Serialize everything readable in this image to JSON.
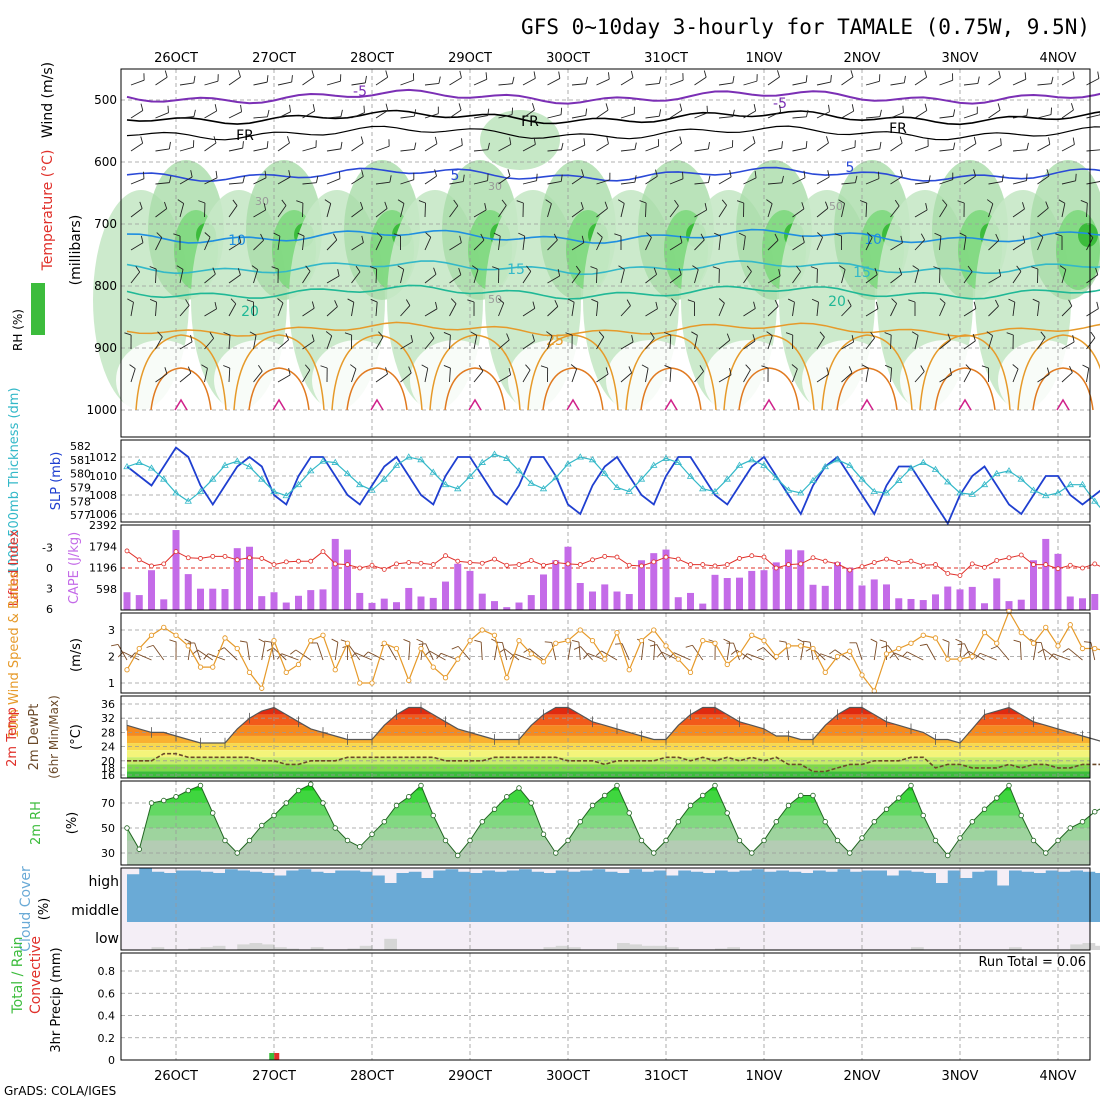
{
  "title": "GFS 0~10day 3-hourly for TAMALE (0.75W, 9.5N)",
  "footer": "GrADS: COLA/IGES",
  "dates": [
    "26OCT",
    "27OCT",
    "28OCT",
    "29OCT",
    "30OCT",
    "31OCT",
    "1NOV",
    "2NOV",
    "3NOV",
    "4NOV"
  ],
  "colors": {
    "purple": "#7b2fb5",
    "blue": "#2a49d6",
    "cyan": "#33b8c8",
    "orange": "#e69a2a",
    "dark_orange": "#e07a20",
    "green": "#3cbc3c",
    "rh_mid": "#7ed87e",
    "rh_light": "#c6e8c6",
    "cloud": "#6aaad6",
    "cloud_high_bg": "#f4eef6",
    "red": "#e0302a"
  },
  "panels": {
    "upper": {
      "ylabel_wind": "Wind (m/s)",
      "ylabel_temp": "Temperature (°C)",
      "ylabel_rh": "RH (%)",
      "ylabel_mb": "(millibars)",
      "yticks": [
        "500",
        "600",
        "700",
        "800",
        "900",
        "1000"
      ],
      "contour_labels": [
        "-5",
        "-5",
        "FR",
        "FR",
        "FR",
        "5",
        "5",
        "10",
        "10",
        "15",
        "15",
        "20",
        "20",
        "25",
        "30",
        "30",
        "50",
        "50"
      ]
    },
    "thickness": {
      "ylabel_left": "1000-500mb Thickness (dm)",
      "ylabel_right": "SLP (mb)",
      "left_ticks": [
        "582",
        "581",
        "580",
        "579",
        "578",
        "577"
      ],
      "right_ticks": [
        "1012",
        "1010",
        "1008",
        "1006"
      ]
    },
    "cape": {
      "ylabel_left": "Lifted Index",
      "ylabel_right": "CAPE (J/kg)",
      "left_ticks": [
        "-3",
        "0",
        "3",
        "6"
      ],
      "right_ticks": [
        "2392",
        "1794",
        "1196",
        "598"
      ]
    },
    "wind": {
      "ylabel": "10m Wind Speed & Barbs",
      "unit": "(m/s)",
      "yticks": [
        "3",
        "2",
        "1"
      ]
    },
    "temp": {
      "ylabel1": "2m Temp",
      "ylabel2": "2m DewPt",
      "ylabel3": "(6hr Min/Max)",
      "unit": "(°C)",
      "yticks": [
        "36",
        "32",
        "28",
        "24",
        "20",
        "18",
        "16"
      ]
    },
    "rh": {
      "ylabel": "2m RH",
      "unit": "(%)",
      "yticks": [
        "70",
        "50",
        "30"
      ]
    },
    "cloud": {
      "ylabel": "Cloud Cover",
      "unit": "(%)",
      "levels": [
        "high",
        "middle",
        "low"
      ]
    },
    "precip": {
      "ylabel_left1": "Total / Rain",
      "ylabel_left2": "Convective",
      "ylabel": "3hr Precip (mm)",
      "yticks": [
        "0.8",
        "0.6",
        "0.4",
        "0.2",
        "0"
      ],
      "run_total": "Run Total = 0.06"
    }
  },
  "chart_data": {
    "type": "line",
    "title": "GFS 0~10day 3-hourly for TAMALE (0.75W, 9.5N)",
    "x_dates": [
      "26OCT",
      "27OCT",
      "28OCT",
      "29OCT",
      "30OCT",
      "31OCT",
      "1NOV",
      "2NOV",
      "3NOV",
      "4NOV"
    ],
    "step_hours": 3,
    "n_steps": 81,
    "slp_mb": [
      1011,
      1010,
      1009,
      1011,
      1013,
      1012,
      1009,
      1007,
      1009,
      1011,
      1012,
      1011,
      1008,
      1007,
      1010,
      1012,
      1012,
      1010,
      1008,
      1007,
      1009,
      1011,
      1012,
      1010,
      1008,
      1007,
      1010,
      1012,
      1012,
      1010,
      1008,
      1007,
      1009,
      1012,
      1012,
      1010,
      1007,
      1006,
      1009,
      1011,
      1012,
      1010,
      1008,
      1007,
      1010,
      1012,
      1012,
      1010,
      1008,
      1007,
      1009,
      1011,
      1012,
      1010,
      1008,
      1006,
      1009,
      1011,
      1012,
      1010,
      1008,
      1006,
      1009,
      1011,
      1011,
      1009,
      1007,
      1005,
      1008,
      1010,
      1011,
      1009,
      1007,
      1006,
      1008,
      1010,
      1010,
      1008,
      1007,
      1008,
      1009
    ],
    "thickness_dm": [
      580.5,
      580.8,
      580.4,
      579.6,
      578.6,
      578.0,
      578.7,
      579.6,
      580.6,
      580.9,
      580.5,
      579.6,
      578.7,
      578.4,
      579.2,
      580.2,
      580.9,
      580.8,
      580.0,
      579.2,
      578.8,
      579.6,
      580.6,
      581.2,
      581.0,
      580.1,
      579.2,
      578.9,
      579.8,
      580.8,
      581.4,
      581.1,
      580.2,
      579.3,
      578.9,
      579.7,
      580.7,
      581.2,
      581.0,
      580.0,
      579.0,
      578.7,
      579.6,
      580.6,
      581.1,
      580.8,
      579.8,
      578.9,
      578.7,
      579.6,
      580.6,
      581.0,
      580.6,
      579.7,
      578.8,
      578.6,
      579.5,
      580.5,
      581.0,
      580.6,
      579.6,
      578.7,
      578.6,
      579.5,
      580.4,
      580.8,
      580.3,
      579.4,
      578.6,
      578.5,
      579.2,
      580.0,
      580.2,
      579.6,
      578.8,
      578.4,
      578.6,
      579.2,
      579.2,
      578.0,
      577.0
    ],
    "cape_jkg": [
      500,
      420,
      1120,
      300,
      2250,
      1010,
      600,
      600,
      590,
      1740,
      1780,
      390,
      500,
      210,
      400,
      560,
      580,
      2000,
      1700,
      480,
      200,
      320,
      220,
      620,
      380,
      340,
      800,
      1300,
      1100,
      460,
      250,
      80,
      210,
      420,
      1000,
      1400,
      1780,
      760,
      520,
      720,
      520,
      450,
      1400,
      1600,
      1700,
      360,
      480,
      180,
      990,
      900,
      910,
      1100,
      1120,
      1340,
      1700,
      1680,
      710,
      680,
      1350,
      1190,
      690,
      860,
      720,
      330,
      310,
      280,
      440,
      660,
      580,
      650,
      190,
      890,
      250,
      290,
      1400,
      2000,
      1580,
      380,
      330,
      450,
      70
    ],
    "lifted_index": [
      -2.5,
      -1.2,
      -0.3,
      -0.6,
      -2.4,
      -1.5,
      -1.4,
      -1.7,
      -1.7,
      -1.2,
      -1.5,
      -1.4,
      -0.5,
      -0.9,
      -1.0,
      -1.0,
      -2.4,
      -0.6,
      -0.5,
      0.0,
      -0.4,
      0.2,
      -0.6,
      -0.8,
      -0.7,
      -0.5,
      -1.8,
      -1.0,
      -0.8,
      -0.7,
      -1.3,
      -0.4,
      -0.5,
      -1.1,
      -0.4,
      -0.8,
      -0.6,
      -0.5,
      -1.2,
      -1.7,
      -1.6,
      -0.4,
      -0.3,
      -0.9,
      -1.6,
      -1.3,
      -0.5,
      -0.5,
      -0.3,
      -0.5,
      -1.4,
      -1.8,
      -1.6,
      0.0,
      -0.5,
      -0.6,
      -1.5,
      -1.0,
      -0.6,
      0.3,
      -0.2,
      -0.8,
      -1.3,
      -0.8,
      -1.0,
      -0.4,
      -0.5,
      0.8,
      1.1,
      -0.6,
      -0.1,
      -1.1,
      -1.5,
      -1.9,
      -0.5,
      -0.5,
      0.1,
      -0.4,
      0.0,
      -0.6,
      0.2
    ],
    "wind10m_ms": [
      1.5,
      2.3,
      2.8,
      3.1,
      2.8,
      2.4,
      1.6,
      1.6,
      2.7,
      2.3,
      1.4,
      0.8,
      2.6,
      1.4,
      1.7,
      2.6,
      2.8,
      1.5,
      2.5,
      1.0,
      1.0,
      2.5,
      2.3,
      1.1,
      2.3,
      1.6,
      1.2,
      1.9,
      2.6,
      3.0,
      2.8,
      1.2,
      2.6,
      2.1,
      1.8,
      2.5,
      2.6,
      3.0,
      2.6,
      1.9,
      2.9,
      1.5,
      2.6,
      3.0,
      2.4,
      1.9,
      1.4,
      2.6,
      2.5,
      1.7,
      2.1,
      2.8,
      2.6,
      2.0,
      2.4,
      2.4,
      2.3,
      1.4,
      2.0,
      2.2,
      1.3,
      0.7,
      2.1,
      2.3,
      2.5,
      2.8,
      2.7,
      1.9,
      1.9,
      2.0,
      2.9,
      2.5,
      3.7,
      2.9,
      2.5,
      3.1,
      2.4,
      3.2,
      2.3,
      2.3,
      2.2
    ],
    "temp2m_c": [
      30,
      29,
      28,
      28,
      27,
      26,
      25,
      25,
      25,
      29,
      32,
      34,
      35,
      33,
      31,
      29,
      28,
      27,
      26,
      26,
      26,
      30,
      33,
      35,
      35,
      33,
      31,
      29,
      28,
      27,
      26,
      26,
      26,
      30,
      33,
      35,
      35,
      33,
      31,
      30,
      29,
      28,
      27,
      26,
      26,
      30,
      33,
      35,
      35,
      33,
      31,
      30,
      29,
      27,
      27,
      26,
      26,
      30,
      33,
      35,
      35,
      33,
      31,
      30,
      29,
      28,
      26,
      26,
      25,
      29,
      33,
      34,
      35,
      33,
      31,
      30,
      29,
      28,
      27,
      26,
      25
    ],
    "dewpt2m_c": [
      20,
      20,
      20,
      22,
      22,
      21,
      21,
      21,
      21,
      21,
      21,
      20,
      20,
      19,
      19,
      20,
      20,
      20,
      21,
      21,
      21,
      21,
      21,
      21,
      21,
      21,
      20,
      20,
      20,
      20,
      21,
      21,
      21,
      21,
      21,
      21,
      20,
      20,
      20,
      19,
      20,
      20,
      20,
      20,
      21,
      21,
      20,
      21,
      20,
      21,
      20,
      21,
      20,
      21,
      19,
      19,
      17,
      17,
      18,
      19,
      19,
      20,
      20,
      20,
      21,
      21,
      18,
      19,
      19,
      18,
      18,
      18,
      19,
      18,
      19,
      19,
      18,
      18,
      19,
      19,
      19
    ],
    "rh2m_pct": [
      50,
      33,
      70,
      72,
      75,
      80,
      84,
      62,
      40,
      30,
      40,
      52,
      60,
      70,
      80,
      85,
      70,
      50,
      40,
      35,
      45,
      55,
      68,
      75,
      84,
      60,
      40,
      28,
      40,
      55,
      65,
      75,
      82,
      70,
      45,
      30,
      40,
      55,
      68,
      76,
      84,
      62,
      40,
      30,
      40,
      55,
      68,
      76,
      84,
      62,
      40,
      30,
      40,
      55,
      68,
      76,
      76,
      55,
      40,
      30,
      42,
      55,
      65,
      74,
      84,
      60,
      40,
      28,
      42,
      55,
      65,
      74,
      84,
      60,
      40,
      30,
      40,
      50,
      55,
      63,
      68
    ],
    "cloud_high_pct": [
      75,
      100,
      85,
      80,
      90,
      90,
      85,
      80,
      95,
      90,
      85,
      80,
      70,
      90,
      95,
      85,
      80,
      90,
      90,
      85,
      70,
      40,
      80,
      85,
      60,
      90,
      95,
      85,
      80,
      90,
      85,
      90,
      95,
      85,
      80,
      90,
      85,
      90,
      95,
      85,
      80,
      95,
      85,
      90,
      70,
      90,
      85,
      80,
      90,
      85,
      90,
      95,
      85,
      90,
      85,
      80,
      90,
      85,
      95,
      85,
      90,
      90,
      70,
      90,
      85,
      80,
      40,
      90,
      60,
      85,
      90,
      30,
      90,
      85,
      80,
      90,
      85,
      90,
      85,
      80,
      90
    ],
    "cloud_mid_pct": [
      100,
      100,
      100,
      100,
      100,
      100,
      100,
      100,
      100,
      100,
      100,
      100,
      100,
      100,
      100,
      100,
      100,
      100,
      100,
      100,
      100,
      100,
      100,
      100,
      100,
      100,
      100,
      100,
      100,
      100,
      100,
      100,
      100,
      100,
      100,
      100,
      100,
      100,
      100,
      100,
      100,
      100,
      100,
      100,
      100,
      100,
      100,
      100,
      100,
      100,
      100,
      100,
      100,
      100,
      100,
      100,
      100,
      100,
      100,
      100,
      100,
      100,
      100,
      100,
      100,
      100,
      100,
      100,
      100,
      100,
      100,
      100,
      100,
      100,
      100,
      100,
      100,
      100,
      100,
      100,
      100
    ],
    "cloud_low_pct": [
      0,
      0,
      10,
      0,
      0,
      5,
      10,
      15,
      0,
      20,
      25,
      20,
      10,
      5,
      0,
      10,
      0,
      0,
      5,
      15,
      0,
      40,
      0,
      0,
      0,
      0,
      0,
      0,
      0,
      0,
      0,
      0,
      0,
      0,
      10,
      15,
      10,
      0,
      0,
      0,
      25,
      20,
      15,
      15,
      10,
      0,
      0,
      0,
      5,
      10,
      0,
      0,
      0,
      0,
      0,
      0,
      0,
      0,
      0,
      0,
      0,
      0,
      0,
      0,
      10,
      0,
      0,
      0,
      0,
      0,
      0,
      0,
      10,
      0,
      0,
      0,
      0,
      20,
      25,
      15,
      30
    ],
    "precip3h_mm": [
      0,
      0,
      0,
      0,
      0,
      0,
      0,
      0,
      0,
      0,
      0,
      0,
      0,
      0,
      0,
      0,
      0,
      0,
      0,
      0,
      0,
      0,
      0,
      0,
      0,
      0,
      0,
      0,
      0,
      0,
      0,
      0,
      0,
      0,
      0,
      0,
      0,
      0,
      0,
      0,
      0,
      0,
      0,
      0,
      0,
      0,
      0,
      0,
      0,
      0,
      0,
      0,
      0,
      0,
      0,
      0,
      0,
      0,
      0,
      0,
      0,
      0,
      0,
      0,
      0,
      0,
      0,
      0,
      0,
      0,
      0,
      0,
      0,
      0,
      0,
      0,
      0,
      0,
      0,
      0,
      0
    ],
    "precip_spike": {
      "date_index": 1,
      "offset_steps": 1,
      "value_mm": 0.06
    }
  }
}
